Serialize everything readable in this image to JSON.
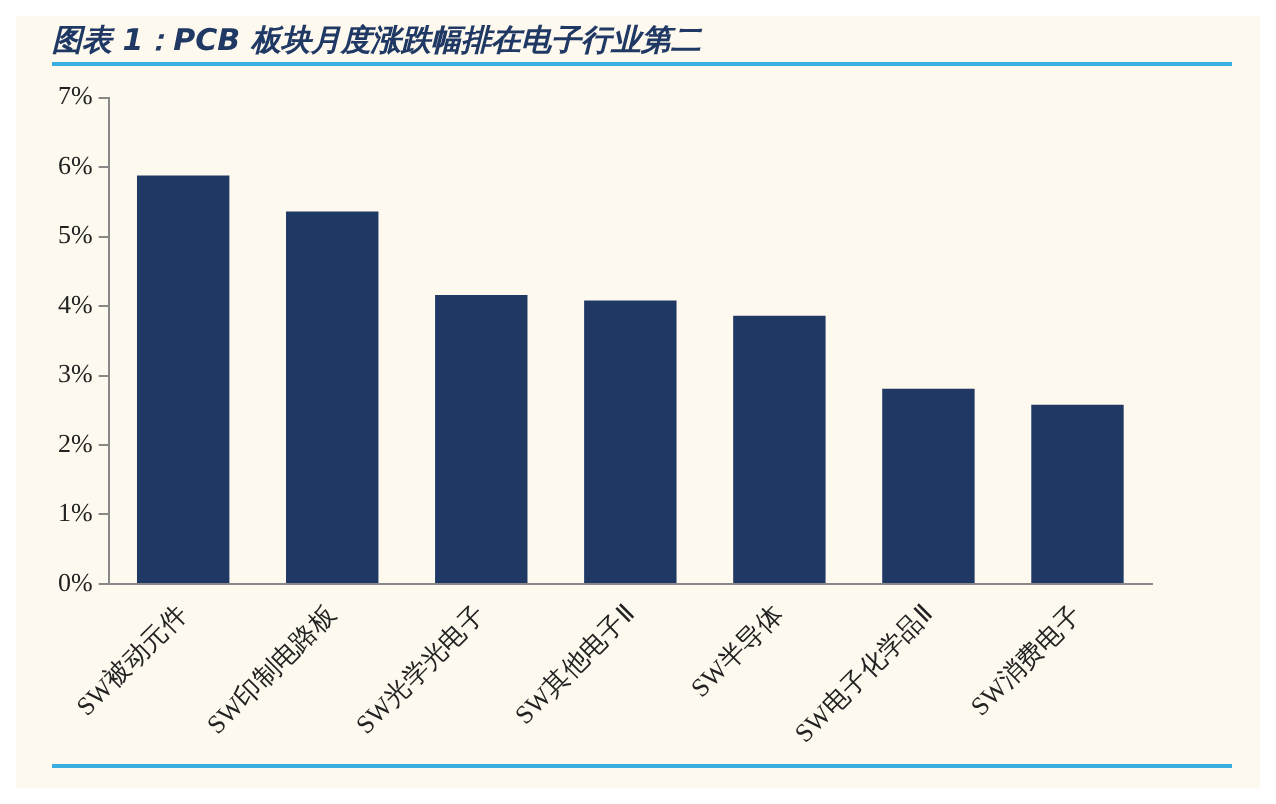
{
  "chart_data": {
    "type": "bar",
    "title": "图表 1：PCB 板块月度涨跌幅排在电子行业第二",
    "categories": [
      "SW被动元件",
      "SW印制电路板",
      "SW光学光电子",
      "SW其他电子Ⅱ",
      "SW半导体",
      "SW电子化学品Ⅱ",
      "SW消费电子"
    ],
    "values": [
      5.88,
      5.36,
      4.16,
      4.08,
      3.86,
      2.81,
      2.58
    ],
    "color": "#1f3864",
    "ylim": [
      0,
      7
    ],
    "yticks": [
      {
        "value": 0,
        "label": "0%"
      },
      {
        "value": 1,
        "label": "1%"
      },
      {
        "value": 2,
        "label": "2%"
      },
      {
        "value": 3,
        "label": "3%"
      },
      {
        "value": 4,
        "label": "4%"
      },
      {
        "value": 5,
        "label": "5%"
      },
      {
        "value": 6,
        "label": "6%"
      },
      {
        "value": 7,
        "label": "7%"
      }
    ],
    "grid": false,
    "legend": false
  }
}
